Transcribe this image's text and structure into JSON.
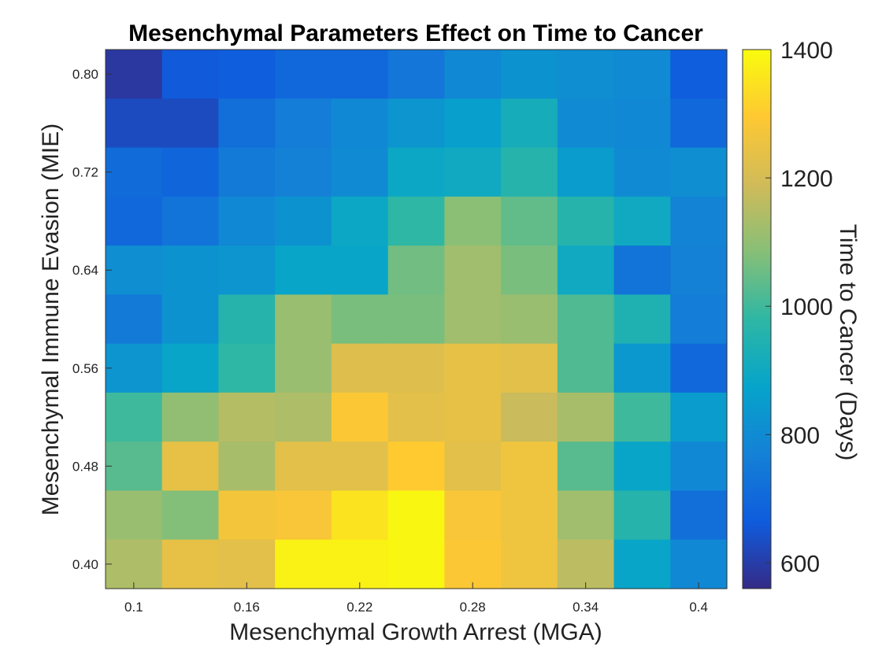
{
  "chart_data": {
    "type": "heatmap",
    "title": "Mesenchymal Parameters Effect on Time to Cancer",
    "xlabel": "Mesenchymal Growth Arrest (MGA)",
    "ylabel": "Mesenchymal Immune Evasion (MIE)",
    "colorbar_label": "Time to Cancer (Days)",
    "x_range": [
      0.1,
      0.4
    ],
    "y_range": [
      0.4,
      0.8
    ],
    "x_ticks": [
      "0.1",
      "0.16",
      "0.22",
      "0.28",
      "0.34",
      "0.4"
    ],
    "y_ticks": [
      "0.40",
      "0.48",
      "0.56",
      "0.64",
      "0.72",
      "0.80"
    ],
    "color_range": [
      560,
      1400
    ],
    "colorbar_ticks": [
      "600",
      "800",
      "1000",
      "1200",
      "1400"
    ],
    "colormap": "parula",
    "grid": false,
    "rows_top_to_bottom": [
      [
        590,
        660,
        670,
        700,
        700,
        740,
        790,
        820,
        810,
        800,
        670
      ],
      [
        630,
        630,
        720,
        760,
        790,
        830,
        860,
        920,
        800,
        790,
        700
      ],
      [
        710,
        690,
        750,
        770,
        800,
        890,
        900,
        960,
        850,
        800,
        810
      ],
      [
        700,
        730,
        790,
        820,
        890,
        980,
        1090,
        1040,
        960,
        900,
        780
      ],
      [
        810,
        820,
        830,
        880,
        880,
        1060,
        1120,
        1070,
        900,
        730,
        770
      ],
      [
        750,
        820,
        960,
        1110,
        1070,
        1070,
        1120,
        1110,
        1020,
        940,
        760
      ],
      [
        830,
        880,
        980,
        1110,
        1220,
        1220,
        1240,
        1230,
        1020,
        840,
        700
      ],
      [
        1000,
        1100,
        1150,
        1140,
        1290,
        1230,
        1240,
        1180,
        1130,
        1000,
        850
      ],
      [
        1030,
        1240,
        1130,
        1230,
        1230,
        1300,
        1230,
        1260,
        1030,
        880,
        790
      ],
      [
        1110,
        1080,
        1270,
        1280,
        1350,
        1390,
        1280,
        1260,
        1120,
        960,
        720
      ],
      [
        1140,
        1240,
        1230,
        1380,
        1380,
        1390,
        1290,
        1260,
        1160,
        880,
        790
      ]
    ]
  }
}
